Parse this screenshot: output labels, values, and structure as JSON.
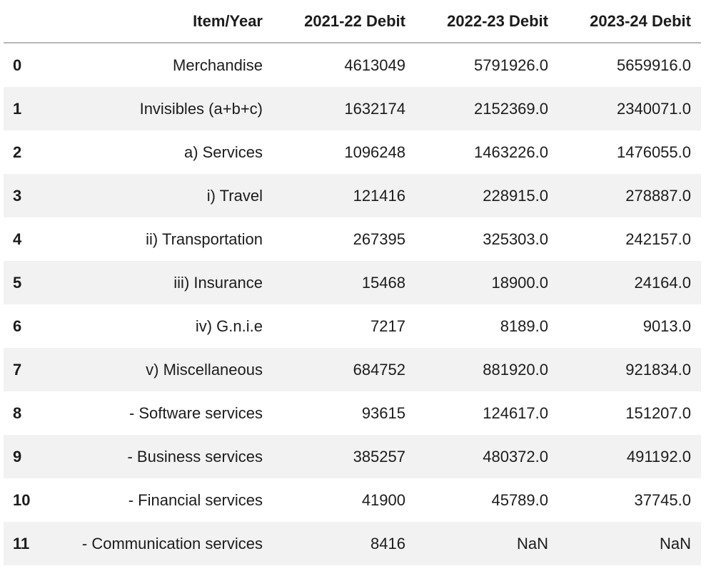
{
  "chart_data": {
    "type": "table",
    "columns": [
      "",
      "Item/Year",
      "2021-22 Debit",
      "2022-23 Debit",
      "2023-24 Debit"
    ],
    "rows": [
      {
        "index": "0",
        "item": "Merchandise",
        "values": [
          "4613049",
          "5791926.0",
          "5659916.0"
        ]
      },
      {
        "index": "1",
        "item": "Invisibles (a+b+c)",
        "values": [
          "1632174",
          "2152369.0",
          "2340071.0"
        ]
      },
      {
        "index": "2",
        "item": "a) Services",
        "values": [
          "1096248",
          "1463226.0",
          "1476055.0"
        ]
      },
      {
        "index": "3",
        "item": "i) Travel",
        "values": [
          "121416",
          "228915.0",
          "278887.0"
        ]
      },
      {
        "index": "4",
        "item": "ii) Transportation",
        "values": [
          "267395",
          "325303.0",
          "242157.0"
        ]
      },
      {
        "index": "5",
        "item": "iii) Insurance",
        "values": [
          "15468",
          "18900.0",
          "24164.0"
        ]
      },
      {
        "index": "6",
        "item": "iv) G.n.i.e",
        "values": [
          "7217",
          "8189.0",
          "9013.0"
        ]
      },
      {
        "index": "7",
        "item": "v) Miscellaneous",
        "values": [
          "684752",
          "881920.0",
          "921834.0"
        ]
      },
      {
        "index": "8",
        "item": "- Software services",
        "values": [
          "93615",
          "124617.0",
          "151207.0"
        ]
      },
      {
        "index": "9",
        "item": "- Business services",
        "values": [
          "385257",
          "480372.0",
          "491192.0"
        ]
      },
      {
        "index": "10",
        "item": "- Financial services",
        "values": [
          "41900",
          "45789.0",
          "37745.0"
        ]
      },
      {
        "index": "11",
        "item": "- Communication services",
        "values": [
          "8416",
          "NaN",
          "NaN"
        ]
      }
    ]
  },
  "colors": {
    "background": "#ffffff",
    "text": "#1c1c1c",
    "row_stripe": "#f2f2f2",
    "header_border": "#b7b7b7"
  }
}
